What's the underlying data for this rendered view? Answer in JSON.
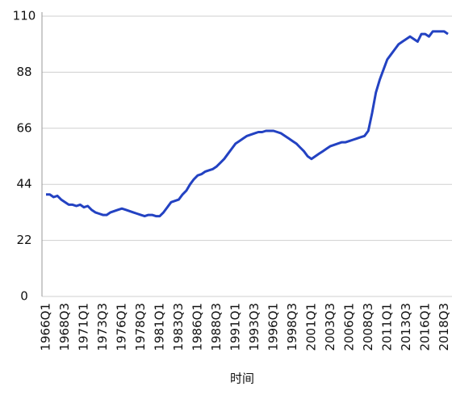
{
  "chart_data": {
    "type": "line",
    "x_label": "时间",
    "color": "#2342c2",
    "categories": [
      "1966Q1",
      null,
      null,
      null,
      null,
      "1968Q3",
      null,
      null,
      null,
      null,
      "1971Q1",
      null,
      null,
      null,
      null,
      "1973Q3",
      null,
      null,
      null,
      null,
      "1976Q1",
      null,
      null,
      null,
      null,
      "1978Q3",
      null,
      null,
      null,
      null,
      "1981Q1",
      null,
      null,
      null,
      null,
      "1983Q3",
      null,
      null,
      null,
      null,
      "1986Q1",
      null,
      null,
      null,
      null,
      "1988Q3",
      null,
      null,
      null,
      null,
      "1991Q1",
      null,
      null,
      null,
      null,
      "1993Q3",
      null,
      null,
      null,
      null,
      "1996Q1",
      null,
      null,
      null,
      null,
      "1998Q3",
      null,
      null,
      null,
      null,
      "2001Q1",
      null,
      null,
      null,
      null,
      "2003Q3",
      null,
      null,
      null,
      null,
      "2006Q1",
      null,
      null,
      null,
      null,
      "2008Q3",
      null,
      null,
      null,
      null,
      "2011Q1",
      null,
      null,
      null,
      null,
      "2013Q3",
      null,
      null,
      null,
      null,
      "2016Q1",
      null,
      null,
      null,
      null,
      "2018Q3",
      null
    ],
    "values": [
      40,
      40,
      39,
      39.5,
      38,
      37,
      36,
      36,
      35.5,
      36,
      35,
      35.5,
      34,
      33,
      32.5,
      32,
      32,
      33,
      33.5,
      34,
      34.5,
      34,
      33.5,
      33,
      32.5,
      32,
      31.5,
      32,
      32,
      31.5,
      31.5,
      33,
      35,
      37,
      37.5,
      38,
      40,
      41.5,
      44,
      46,
      47.5,
      48,
      49,
      49.5,
      50,
      51,
      52.5,
      54,
      56,
      58,
      60,
      61,
      62,
      63,
      63.5,
      64,
      64.5,
      64.5,
      65,
      65,
      65,
      64.5,
      64,
      63,
      62,
      61,
      60,
      58.5,
      57,
      55,
      54,
      55,
      56,
      57,
      58,
      59,
      59.5,
      60,
      60.5,
      60.5,
      61,
      61.5,
      62,
      62.5,
      63,
      65,
      72,
      80,
      85,
      89,
      93,
      95,
      97,
      99,
      100,
      101,
      102,
      101,
      100,
      103,
      103,
      102,
      104,
      104,
      104,
      104,
      103
    ],
    "ylim": [
      0,
      110
    ],
    "yticks": [
      0,
      22,
      44,
      66,
      88,
      110
    ],
    "grid": true
  }
}
